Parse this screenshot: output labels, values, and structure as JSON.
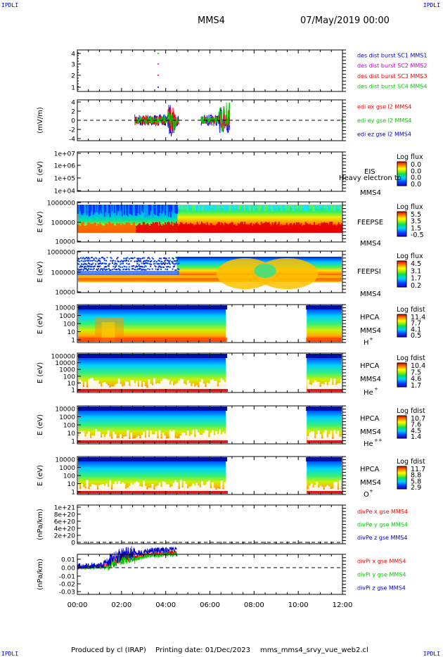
{
  "header": {
    "corner_left": "IPDLI",
    "corner_right": "IPDLI",
    "title": "MMS4",
    "date": "07/May/2019 00:00"
  },
  "footer": {
    "produced": "Produced by cl (IRAP)",
    "printing": "Printing date: 01/Dec/2023",
    "file": "mms_mms4_srvy_vue_web2.cl",
    "corner_left": "IPDLI",
    "corner_right": "IPDLI"
  },
  "colors": {
    "black": "#000000",
    "blue": "#0000ff",
    "green": "#00cc00",
    "red": "#ff0000",
    "magenta": "#cc00cc"
  },
  "chart_data": [
    {
      "id": "des-dist",
      "type": "scatter",
      "ylabel": "",
      "yticks": [
        "4",
        "3",
        "2",
        "1"
      ],
      "legend": [
        {
          "text": "des dist burst SC1 MMS1",
          "color": "#0000cc"
        },
        {
          "text": "des dist burst SC2 MMS2",
          "color": "#cc00cc"
        },
        {
          "text": "des dist burst SC3 MMS3",
          "color": "#ff0000"
        },
        {
          "text": "des dist burst SC4 MMS4",
          "color": "#00cc00"
        }
      ],
      "series": [
        {
          "color": "#00cc00",
          "points": [
            [
              3.65,
              4
            ]
          ]
        },
        {
          "color": "#cc00cc",
          "points": [
            [
              3.65,
              3
            ]
          ]
        },
        {
          "color": "#ff0000",
          "points": [
            [
              3.65,
              2
            ]
          ]
        },
        {
          "color": "#0000cc",
          "points": [
            [
              3.65,
              1
            ]
          ]
        }
      ]
    },
    {
      "id": "edi-e",
      "type": "line",
      "ylabel": "(mV/m)",
      "yticks": [
        "4",
        "2",
        "0",
        "-2",
        "-4"
      ],
      "legend": [
        {
          "text": "edi ex gse l2 MMS4",
          "color": "#ff0000"
        },
        {
          "text": "edi ey gse l2 MMS4",
          "color": "#00cc00"
        },
        {
          "text": "edi ez gse l2 MMS4",
          "color": "#0000cc"
        }
      ]
    },
    {
      "id": "eis",
      "type": "heatmap",
      "ylabel": "E (eV)",
      "yticks": [
        "1e+07",
        "1e+06",
        "1e+05",
        "1e+04"
      ],
      "labels": [
        "EIS",
        "Heavy electron to",
        "MMS4"
      ],
      "colorbar": {
        "title": "Log flux",
        "ticks": [
          "0.0",
          "0.0",
          "0.0",
          "0.0"
        ]
      }
    },
    {
      "id": "feepse",
      "type": "heatmap",
      "ylabel": "E (eV)",
      "yticks": [
        "1000000",
        "100000",
        "10000"
      ],
      "labels": [
        "FEEPSE",
        "MMS4"
      ],
      "colorbar": {
        "title": "Log flux",
        "ticks": [
          "5.5",
          "3.5",
          "1.5",
          "-0.5"
        ]
      }
    },
    {
      "id": "feepsi",
      "type": "heatmap",
      "ylabel": "E (eV)",
      "yticks": [
        "1000000",
        "100000",
        "10000"
      ],
      "labels": [
        "FEEPSI",
        "MMS4"
      ],
      "colorbar": {
        "title": "Log flux",
        "ticks": [
          "4.5",
          "3.1",
          "1.7",
          "0.2"
        ]
      }
    },
    {
      "id": "hpca-h",
      "type": "heatmap",
      "ylabel": "E (eV)",
      "yticks": [
        "10000",
        "1000",
        "100",
        "10",
        "1"
      ],
      "labels": [
        "HPCA",
        "MMS4"
      ],
      "species": "H",
      "species_sup": "+",
      "colorbar": {
        "title": "Log fdist",
        "ticks": [
          "11.4",
          "7.7",
          "4.1",
          "0.5"
        ]
      }
    },
    {
      "id": "hpca-he",
      "type": "heatmap",
      "ylabel": "E (eV)",
      "yticks": [
        "100000",
        "10000",
        "1000",
        "100",
        "10",
        "1"
      ],
      "labels": [
        "HPCA",
        "MMS4"
      ],
      "species": "He",
      "species_sup": "+",
      "colorbar": {
        "title": "Log fdist",
        "ticks": [
          "10.4",
          "7.5",
          "4.6",
          "1.7"
        ]
      }
    },
    {
      "id": "hpca-hepp",
      "type": "heatmap",
      "ylabel": "E (eV)",
      "yticks": [
        "10000",
        "1000",
        "100",
        "10",
        "1"
      ],
      "labels": [
        "HPCA",
        "MMS4"
      ],
      "species": "He",
      "species_sup": "++",
      "colorbar": {
        "title": "Log fdist",
        "ticks": [
          "10.7",
          "7.6",
          "4.5",
          "1.4"
        ]
      }
    },
    {
      "id": "hpca-o",
      "type": "heatmap",
      "ylabel": "E (eV)",
      "yticks": [
        "10000",
        "1000",
        "100",
        "10",
        "1"
      ],
      "labels": [
        "HPCA",
        "MMS4"
      ],
      "species": "O",
      "species_sup": "+",
      "colorbar": {
        "title": "Log fdist",
        "ticks": [
          "11.7",
          "8.8",
          "5.8",
          "2.9"
        ]
      }
    },
    {
      "id": "divpe",
      "type": "line",
      "ylabel": "(nPa/km)",
      "yticks": [
        "1e+21",
        "8e+20",
        "6e+20",
        "4e+20",
        "2e+20",
        "0"
      ],
      "legend": [
        {
          "text": "divPe x gse MMS4",
          "color": "#ff0000"
        },
        {
          "text": "divPe y gse MMS4",
          "color": "#00cc00"
        },
        {
          "text": "divPe z gse MMS4",
          "color": "#0000cc"
        }
      ]
    },
    {
      "id": "divpi",
      "type": "line",
      "ylabel": "(nPa/km)",
      "yticks": [
        "0.01",
        "0.00",
        "-0.01",
        "-0.02",
        "-0.03"
      ],
      "legend": [
        {
          "text": "divPi x gse MMS4",
          "color": "#ff0000"
        },
        {
          "text": "divPi y gse MMS4",
          "color": "#00cc00"
        },
        {
          "text": "divPi z gse MMS4",
          "color": "#0000cc"
        }
      ]
    }
  ],
  "xaxis": {
    "ticks": [
      "00:00",
      "02:00",
      "04:00",
      "06:00",
      "08:00",
      "10:00",
      "12:00"
    ],
    "range": [
      0,
      12
    ],
    "unit": "hours"
  },
  "hpca_gap": [
    6.75,
    10.35
  ]
}
